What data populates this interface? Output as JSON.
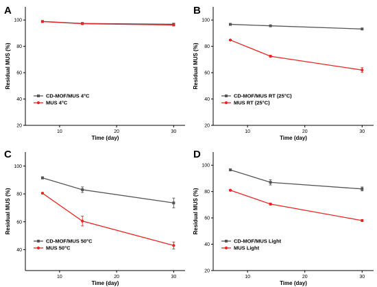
{
  "colors": {
    "mof": "#555555",
    "mus": "#ee2222",
    "axis": "#000000"
  },
  "chart_data": [
    {
      "panel": "A",
      "type": "line",
      "xlabel": "Time (day)",
      "ylabel": "Residual MUS (%)",
      "xlim": [
        4,
        32
      ],
      "ylim": [
        20,
        110
      ],
      "xticks": [
        10,
        20,
        30
      ],
      "yticks": [
        20,
        40,
        60,
        80,
        100
      ],
      "legend_position": "lower-left",
      "series": [
        {
          "name": "CD-MOF/MUS 4°C",
          "color_key": "mof",
          "marker": "square",
          "x": [
            7,
            14,
            30
          ],
          "y": [
            98.9,
            97.4,
            96.8
          ],
          "err": [
            0.4,
            0.6,
            0.5
          ]
        },
        {
          "name": "MUS 4°C",
          "color_key": "mus",
          "marker": "circle",
          "x": [
            7,
            14,
            30
          ],
          "y": [
            98.8,
            97.2,
            96.2
          ],
          "err": [
            0.4,
            0.5,
            0.6
          ]
        }
      ]
    },
    {
      "panel": "B",
      "type": "line",
      "xlabel": "Time (day)",
      "ylabel": "Residual MUS (%)",
      "xlim": [
        4,
        32
      ],
      "ylim": [
        20,
        110
      ],
      "xticks": [
        10,
        20,
        30
      ],
      "yticks": [
        20,
        40,
        60,
        80,
        100
      ],
      "legend_position": "lower-left",
      "series": [
        {
          "name": "CD-MOF/MUS RT (25°C)",
          "color_key": "mof",
          "marker": "square",
          "x": [
            7,
            14,
            30
          ],
          "y": [
            96.7,
            95.6,
            93.2
          ],
          "err": [
            0.5,
            0.5,
            0.5
          ]
        },
        {
          "name": "MUS RT (25°C)",
          "color_key": "mus",
          "marker": "circle",
          "x": [
            7,
            14,
            30
          ],
          "y": [
            84.8,
            72.5,
            62.0
          ],
          "err": [
            0.5,
            0.8,
            1.8
          ]
        }
      ]
    },
    {
      "panel": "C",
      "type": "line",
      "xlabel": "Time (day)",
      "ylabel": "Residual MUS (%)",
      "xlim": [
        4,
        32
      ],
      "ylim": [
        25,
        110
      ],
      "xticks": [
        10,
        20,
        30
      ],
      "yticks": [
        40,
        60,
        80,
        100
      ],
      "legend_position": "lower-left",
      "series": [
        {
          "name": "CD-MOF/MUS 50°C",
          "color_key": "mof",
          "marker": "square",
          "x": [
            7,
            14,
            30
          ],
          "y": [
            91.5,
            83.0,
            73.5
          ],
          "err": [
            0.8,
            2.0,
            3.5
          ]
        },
        {
          "name": "MUS 50°C",
          "color_key": "mus",
          "marker": "circle",
          "x": [
            7,
            14,
            30
          ],
          "y": [
            80.5,
            60.5,
            43.0
          ],
          "err": [
            0.5,
            3.5,
            2.5
          ]
        }
      ]
    },
    {
      "panel": "D",
      "type": "line",
      "xlabel": "Time (day)",
      "ylabel": "Residual MUS (%)",
      "xlim": [
        4,
        32
      ],
      "ylim": [
        20,
        110
      ],
      "xticks": [
        10,
        20,
        30
      ],
      "yticks": [
        20,
        40,
        60,
        80,
        100
      ],
      "legend_position": "lower-left",
      "series": [
        {
          "name": "CD-MOF/MUS Light",
          "color_key": "mof",
          "marker": "square",
          "x": [
            7,
            14,
            30
          ],
          "y": [
            96.5,
            87.0,
            82.0
          ],
          "err": [
            0.8,
            2.0,
            1.5
          ]
        },
        {
          "name": "MUS Light",
          "color_key": "mus",
          "marker": "circle",
          "x": [
            7,
            14,
            30
          ],
          "y": [
            81.0,
            70.5,
            58.0
          ],
          "err": [
            0.5,
            0.8,
            0.8
          ]
        }
      ]
    }
  ]
}
